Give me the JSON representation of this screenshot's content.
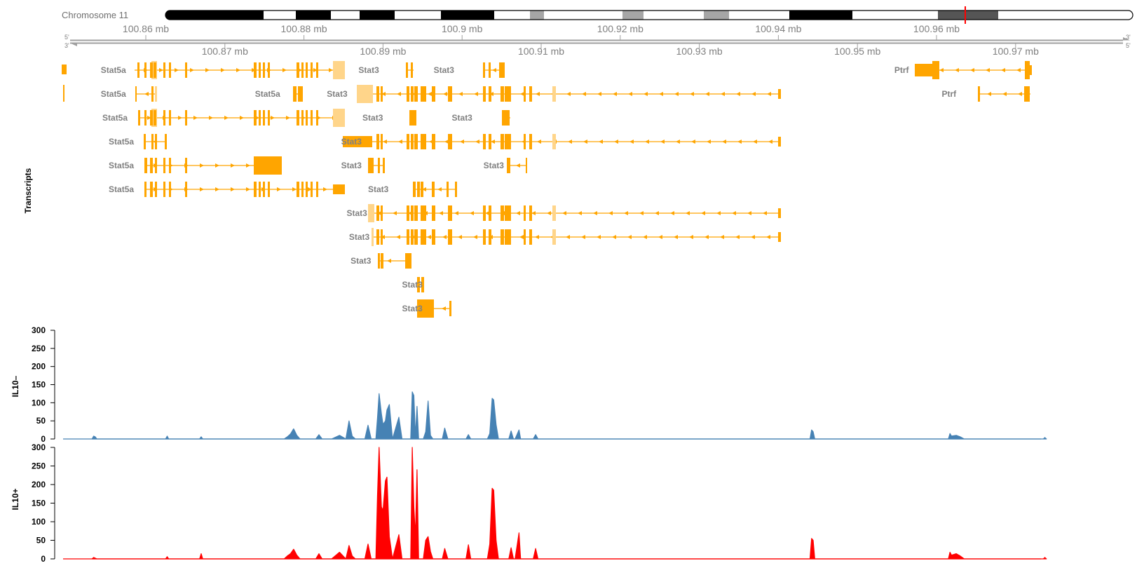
{
  "ideogram": {
    "label": "Chromosome 11",
    "marker_mb": 100.96,
    "bands": [
      {
        "color": "#000000"
      },
      {
        "color": "#ffffff"
      },
      {
        "color": "#000000"
      },
      {
        "color": "#ffffff"
      },
      {
        "color": "#000000"
      },
      {
        "color": "#ffffff"
      },
      {
        "color": "#000000"
      },
      {
        "color": "#ffffff"
      },
      {
        "color": "#a6a6a6"
      },
      {
        "color": "#ffffff"
      },
      {
        "color": "#a6a6a6"
      },
      {
        "color": "#ffffff"
      },
      {
        "color": "#a6a6a6"
      },
      {
        "color": "#ffffff"
      },
      {
        "color": "#000000"
      },
      {
        "color": "#ffffff"
      },
      {
        "color": "#555555"
      },
      {
        "color": "#ffffff"
      }
    ]
  },
  "axis": {
    "top_ticks": [
      "100.86 mb",
      "100.88 mb",
      "100.9 mb",
      "100.92 mb",
      "100.94 mb",
      "100.96 mb"
    ],
    "top_tick_values": [
      100.86,
      100.88,
      100.9,
      100.92,
      100.94,
      100.96
    ],
    "bottom_ticks": [
      "100.87 mb",
      "100.89 mb",
      "100.91 mb",
      "100.93 mb",
      "100.95 mb",
      "100.97 mb"
    ],
    "bottom_tick_values": [
      100.87,
      100.89,
      100.91,
      100.93,
      100.95,
      100.97
    ],
    "strand_left_top": "5'",
    "strand_left_bottom": "3'",
    "strand_right_top": "3'",
    "strand_right_bottom": "5'"
  },
  "transcripts": {
    "track_title": "Transcripts",
    "color": "#ffa500",
    "utr_color": "#ffd58a",
    "rows": [
      {
        "labels": [
          {
            "text": "Stat5a",
            "mb": 100.8575
          },
          {
            "text": "Stat3",
            "mb": 100.8895
          },
          {
            "text": "Stat3",
            "mb": 100.899
          },
          {
            "text": "Ptrf",
            "mb": 100.9565
          }
        ]
      },
      {
        "labels": [
          {
            "text": "Stat5a",
            "mb": 100.8575
          },
          {
            "text": "Stat5a",
            "mb": 100.877
          },
          {
            "text": "Stat3",
            "mb": 100.8855
          },
          {
            "text": "Ptrf",
            "mb": 100.9625
          }
        ]
      },
      {
        "labels": [
          {
            "text": "Stat5a",
            "mb": 100.8577
          },
          {
            "text": "Stat3",
            "mb": 100.89
          },
          {
            "text": "Stat3",
            "mb": 100.9013
          }
        ]
      },
      {
        "labels": [
          {
            "text": "Stat5a",
            "mb": 100.8585
          },
          {
            "text": "Stat3",
            "mb": 100.8873
          }
        ]
      },
      {
        "labels": [
          {
            "text": "Stat5a",
            "mb": 100.8585
          },
          {
            "text": "Stat3",
            "mb": 100.8873
          },
          {
            "text": "Stat3",
            "mb": 100.9053
          }
        ]
      },
      {
        "labels": [
          {
            "text": "Stat5a",
            "mb": 100.8585
          },
          {
            "text": "Stat3",
            "mb": 100.8907
          }
        ]
      },
      {
        "labels": [
          {
            "text": "Stat3",
            "mb": 100.888
          }
        ]
      },
      {
        "labels": [
          {
            "text": "Stat3",
            "mb": 100.8883
          }
        ]
      },
      {
        "labels": [
          {
            "text": "Stat3",
            "mb": 100.8885
          }
        ]
      },
      {
        "labels": [
          {
            "text": "Stat3",
            "mb": 100.895
          }
        ]
      },
      {
        "labels": [
          {
            "text": "Stat3",
            "mb": 100.895
          }
        ]
      }
    ]
  },
  "chart_data": [
    {
      "type": "area",
      "title": "IL10–",
      "color": "#4682b4",
      "ylim": [
        0,
        300
      ],
      "yticks": [
        0,
        50,
        100,
        150,
        200,
        250,
        300
      ],
      "x_unit": "mb",
      "x": [
        100.8532,
        100.8534,
        100.8536,
        100.8538,
        100.8625,
        100.8627,
        100.8629,
        100.8668,
        100.867,
        100.8672,
        100.8775,
        100.8779,
        100.8783,
        100.8787,
        100.8791,
        100.8795,
        100.8815,
        100.8819,
        100.8823,
        100.8835,
        100.8845,
        100.8853,
        100.8857,
        100.8861,
        100.8865,
        100.8877,
        100.8881,
        100.8885,
        100.8891,
        100.8893,
        100.8895,
        100.8898,
        100.89,
        100.8903,
        100.8905,
        100.8908,
        100.8912,
        100.892,
        100.8924,
        100.8935,
        100.8937,
        100.8939,
        100.8941,
        100.8943,
        100.8945,
        100.8951,
        100.8954,
        100.8957,
        100.896,
        100.8963,
        100.8975,
        100.8978,
        100.8982,
        100.9005,
        100.9008,
        100.9011,
        100.9032,
        100.9035,
        100.9038,
        100.904,
        100.9043,
        100.9046,
        100.9059,
        100.9062,
        100.9065,
        100.9067,
        100.9072,
        100.9074,
        100.9076,
        100.909,
        100.9093,
        100.9096,
        100.944,
        100.9442,
        100.9444,
        100.9446,
        100.9615,
        100.9617,
        100.9619,
        100.9625,
        100.963,
        100.9635,
        100.9735,
        100.9737,
        100.9739
      ],
      "y": [
        0,
        8,
        6,
        0,
        0,
        8,
        0,
        0,
        6,
        0,
        0,
        6,
        14,
        28,
        10,
        0,
        0,
        12,
        0,
        0,
        10,
        0,
        50,
        8,
        0,
        0,
        38,
        0,
        0,
        58,
        125,
        70,
        40,
        50,
        80,
        95,
        0,
        60,
        0,
        0,
        130,
        120,
        8,
        90,
        0,
        0,
        20,
        105,
        10,
        0,
        0,
        30,
        0,
        0,
        12,
        0,
        0,
        15,
        112,
        108,
        40,
        0,
        0,
        22,
        0,
        0,
        25,
        0,
        0,
        0,
        12,
        0,
        0,
        25,
        20,
        0,
        0,
        15,
        8,
        10,
        6,
        0,
        0,
        4,
        0
      ]
    },
    {
      "type": "area",
      "title": "IL10+",
      "color": "#ff0000",
      "ylim": [
        0,
        300
      ],
      "yticks": [
        0,
        50,
        100,
        150,
        200,
        250,
        300
      ],
      "x_unit": "mb",
      "x": [
        100.8532,
        100.8534,
        100.8536,
        100.8538,
        100.8625,
        100.8627,
        100.8629,
        100.8668,
        100.867,
        100.8672,
        100.8775,
        100.8779,
        100.8783,
        100.8787,
        100.8791,
        100.8795,
        100.8815,
        100.8819,
        100.8823,
        100.8835,
        100.8845,
        100.8853,
        100.8857,
        100.8861,
        100.8865,
        100.8877,
        100.8881,
        100.8885,
        100.8891,
        100.8893,
        100.8895,
        100.8898,
        100.89,
        100.8903,
        100.8905,
        100.8908,
        100.8912,
        100.892,
        100.8924,
        100.8935,
        100.8937,
        100.8939,
        100.8941,
        100.8943,
        100.8945,
        100.8951,
        100.8954,
        100.8957,
        100.896,
        100.8963,
        100.8975,
        100.8978,
        100.8982,
        100.9005,
        100.9008,
        100.9011,
        100.9032,
        100.9035,
        100.9038,
        100.904,
        100.9043,
        100.9046,
        100.9059,
        100.9062,
        100.9065,
        100.9067,
        100.9072,
        100.9074,
        100.9076,
        100.909,
        100.9093,
        100.9096,
        100.944,
        100.9442,
        100.9444,
        100.9446,
        100.9615,
        100.9617,
        100.9619,
        100.9625,
        100.963,
        100.9635,
        100.9735,
        100.9737,
        100.9739
      ],
      "y": [
        0,
        4,
        2,
        0,
        0,
        6,
        0,
        0,
        14,
        0,
        0,
        8,
        14,
        26,
        10,
        0,
        0,
        14,
        0,
        0,
        18,
        0,
        36,
        8,
        0,
        0,
        40,
        0,
        0,
        170,
        300,
        140,
        130,
        210,
        220,
        60,
        0,
        65,
        0,
        0,
        310,
        140,
        60,
        240,
        0,
        0,
        50,
        60,
        20,
        0,
        0,
        28,
        0,
        0,
        38,
        0,
        0,
        40,
        190,
        185,
        50,
        0,
        0,
        30,
        0,
        0,
        70,
        0,
        0,
        0,
        28,
        0,
        0,
        55,
        50,
        0,
        0,
        18,
        10,
        14,
        8,
        0,
        0,
        4,
        0
      ]
    }
  ]
}
